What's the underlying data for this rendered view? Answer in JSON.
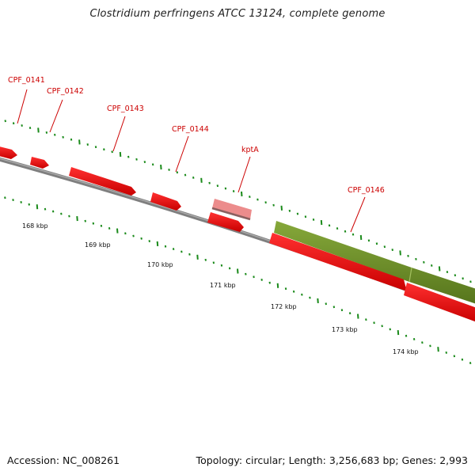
{
  "title": "Clostridium perfringens ATCC 13124, complete genome",
  "footer": {
    "accession": "Accession: NC_008261",
    "stats": "Topology: circular; Length: 3,256,683 bp; Genes: 2,993"
  },
  "gene_labels": [
    "CPF_0141",
    "CPF_0142",
    "CPF_0143",
    "CPF_0144",
    "kptA",
    "CPF_0146"
  ],
  "position_labels": [
    "168 kbp",
    "169 kbp",
    "170 kbp",
    "171 kbp",
    "172 kbp",
    "173 kbp",
    "174 kbp"
  ],
  "colors": {
    "cds_red": "#ee0000",
    "cds_pale": "#ea8a8a",
    "cds_olive": "#6b8e23",
    "label_red": "#cc0000",
    "tick_green": "#1a8a1a",
    "backbone": "#8a8a8a"
  }
}
